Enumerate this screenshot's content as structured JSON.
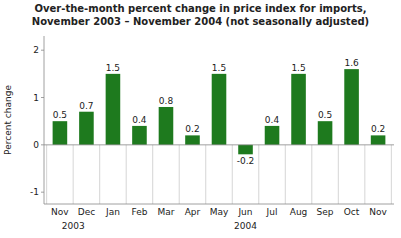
{
  "chart_data": {
    "type": "bar",
    "title": "Over-the-month percent change in price index for imports,",
    "subtitle": "November 2003 – November 2004 (not seasonally adjusted)",
    "y_label": "Percent change",
    "categories": [
      "Nov",
      "Dec",
      "Jan",
      "Feb",
      "Mar",
      "Apr",
      "May",
      "Jun",
      "Jul",
      "Aug",
      "Sep",
      "Oct",
      "Nov"
    ],
    "values": [
      0.5,
      0.7,
      1.5,
      0.4,
      0.8,
      0.2,
      1.5,
      -0.2,
      0.4,
      1.5,
      0.5,
      1.6,
      0.2
    ],
    "color": "#1e7a1e",
    "ylim": [
      -1.25,
      2.3
    ],
    "yticks": [
      -1,
      0,
      1,
      2
    ],
    "grid": false,
    "data_labels": true,
    "annotations": [
      {
        "text": "2003",
        "x": 0.5
      },
      {
        "text": "2004",
        "x": 7.0
      }
    ]
  }
}
